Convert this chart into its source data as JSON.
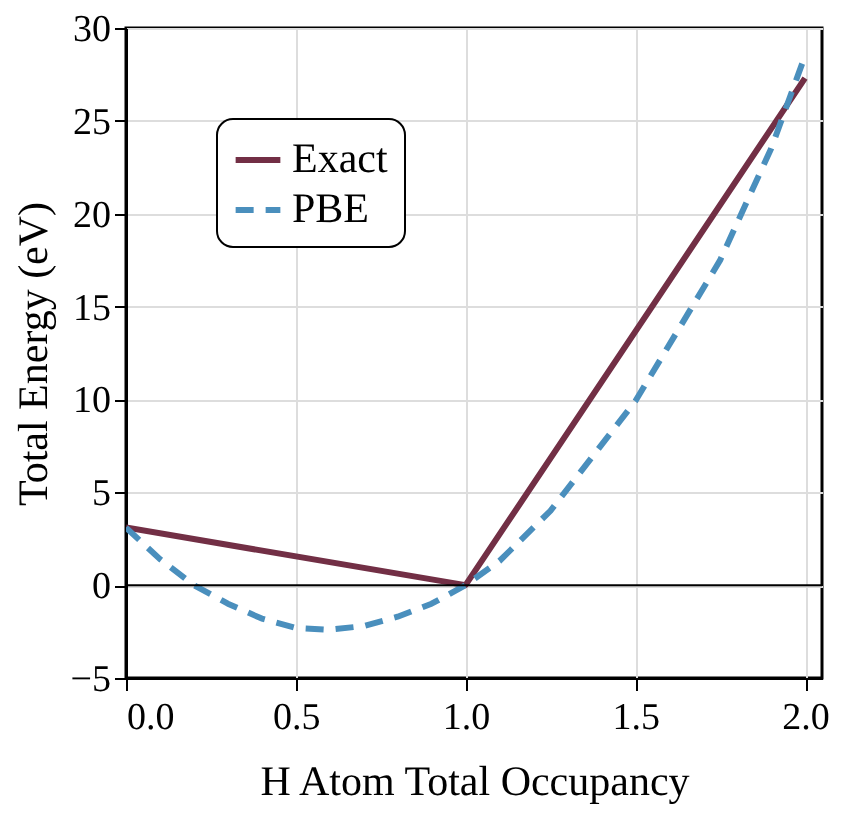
{
  "chart_data": {
    "type": "line",
    "xlabel": "H Atom Total Occupancy",
    "ylabel": "Total Energy (eV)",
    "series": [
      {
        "name": "Exact",
        "color": "#722f45",
        "line_style": "solid",
        "x": [
          0,
          1,
          2
        ],
        "values": [
          3.1,
          0,
          27.3
        ]
      },
      {
        "name": "PBE",
        "color": "#4a8fbd",
        "line_style": "dashed",
        "x": [
          0,
          0.1,
          0.2,
          0.3,
          0.4,
          0.5,
          0.6,
          0.7,
          0.8,
          0.9,
          1.0,
          1.1,
          1.25,
          1.5,
          1.75,
          1.9,
          2.0
        ],
        "values": [
          3.1,
          1.4,
          0,
          -1.0,
          -1.8,
          -2.3,
          -2.4,
          -2.2,
          -1.7,
          -1.0,
          0,
          1.3,
          4.0,
          9.9,
          17.5,
          23.5,
          28.5
        ]
      }
    ],
    "xlim": [
      0,
      2.05
    ],
    "ylim": [
      -5,
      30
    ],
    "xticks": [
      {
        "value": 0,
        "label": "0.0"
      },
      0.5,
      {
        "value": 1,
        "label": "1.0"
      },
      1.5,
      {
        "value": 2,
        "label": "2.0"
      }
    ],
    "yticks": [
      -5,
      0,
      5,
      10,
      15,
      20,
      25,
      30
    ],
    "ref_lines": [
      {
        "axis": "y",
        "value": 0,
        "color": "#000000"
      }
    ],
    "grid": true,
    "legend": "top left",
    "marker": "none"
  }
}
